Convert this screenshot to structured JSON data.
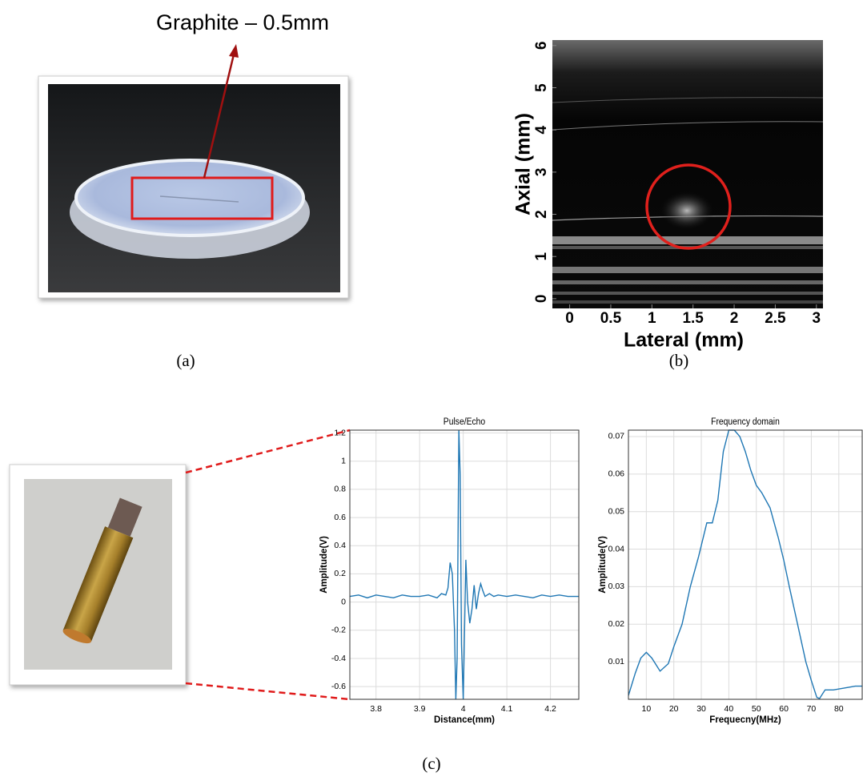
{
  "figure": {
    "annotation": "Graphite – 0.5mm",
    "panel_labels": [
      "(a)",
      "(b)",
      "(c)"
    ]
  },
  "chart_data": [
    {
      "type": "image",
      "xlabel": "Lateral (mm)",
      "ylabel": "Axial (mm)",
      "xlim": [
        -0.21,
        3.08
      ],
      "ylim": [
        -0.23,
        6.13
      ],
      "xticks": [
        0,
        0.5,
        1,
        1.5,
        2,
        2.5,
        3
      ],
      "yticks": [
        0,
        1,
        2,
        3,
        4,
        5,
        6
      ]
    },
    {
      "type": "line",
      "title": "Pulse/Echo",
      "xlabel": "Distance(mm)",
      "ylabel": "Amplitude(V)",
      "color": "#1f77b4",
      "grid": true,
      "xlim": [
        3.74,
        4.265
      ],
      "ylim": [
        -0.69,
        1.22
      ],
      "xticks": [
        3.8,
        3.9,
        4,
        4.1,
        4.2
      ],
      "yticks": [
        -0.6,
        -0.4,
        -0.2,
        0,
        0.2,
        0.4,
        0.6,
        0.8,
        1,
        1.2
      ],
      "x": [
        3.74,
        3.76,
        3.78,
        3.8,
        3.82,
        3.84,
        3.86,
        3.88,
        3.9,
        3.92,
        3.94,
        3.95,
        3.96,
        3.965,
        3.97,
        3.975,
        3.98,
        3.983,
        3.986,
        3.99,
        3.993,
        3.996,
        4.0,
        4.003,
        4.006,
        4.01,
        4.015,
        4.02,
        4.025,
        4.03,
        4.035,
        4.04,
        4.045,
        4.05,
        4.06,
        4.07,
        4.08,
        4.1,
        4.12,
        4.14,
        4.16,
        4.18,
        4.2,
        4.22,
        4.24,
        4.265
      ],
      "values": [
        0.04,
        0.05,
        0.03,
        0.05,
        0.04,
        0.03,
        0.05,
        0.04,
        0.04,
        0.05,
        0.03,
        0.06,
        0.05,
        0.1,
        0.28,
        0.2,
        -0.2,
        -0.69,
        -0.4,
        1.22,
        0.9,
        -0.3,
        -0.69,
        -0.2,
        0.3,
        0.0,
        -0.15,
        -0.05,
        0.12,
        -0.05,
        0.06,
        0.13,
        0.08,
        0.04,
        0.06,
        0.04,
        0.05,
        0.04,
        0.05,
        0.04,
        0.03,
        0.05,
        0.04,
        0.05,
        0.04,
        0.04
      ]
    },
    {
      "type": "line",
      "title": "Frequency domain",
      "xlabel": "Frequecny(MHz)",
      "ylabel": "Amplitude(V)",
      "color": "#1f77b4",
      "grid": true,
      "xlim": [
        3.5,
        88.5
      ],
      "ylim": [
        0,
        0.0717
      ],
      "xticks": [
        10,
        20,
        30,
        40,
        50,
        60,
        70,
        80
      ],
      "yticks": [
        0.01,
        0.02,
        0.03,
        0.04,
        0.05,
        0.06,
        0.07
      ],
      "x": [
        3.5,
        6,
        8,
        10,
        12,
        15,
        18,
        20,
        23,
        26,
        29,
        32,
        34,
        36,
        38,
        40,
        42,
        44,
        46,
        48,
        50,
        52,
        55,
        58,
        60,
        62,
        65,
        68,
        70,
        72,
        73,
        75,
        78,
        82,
        86,
        88.5
      ],
      "values": [
        0.001,
        0.007,
        0.011,
        0.0125,
        0.011,
        0.0075,
        0.0095,
        0.014,
        0.02,
        0.03,
        0.038,
        0.047,
        0.047,
        0.053,
        0.066,
        0.0717,
        0.0717,
        0.07,
        0.066,
        0.061,
        0.057,
        0.055,
        0.051,
        0.043,
        0.037,
        0.03,
        0.02,
        0.01,
        0.005,
        0.0005,
        0.0002,
        0.0025,
        0.0025,
        0.003,
        0.0035,
        0.0035
      ]
    }
  ]
}
